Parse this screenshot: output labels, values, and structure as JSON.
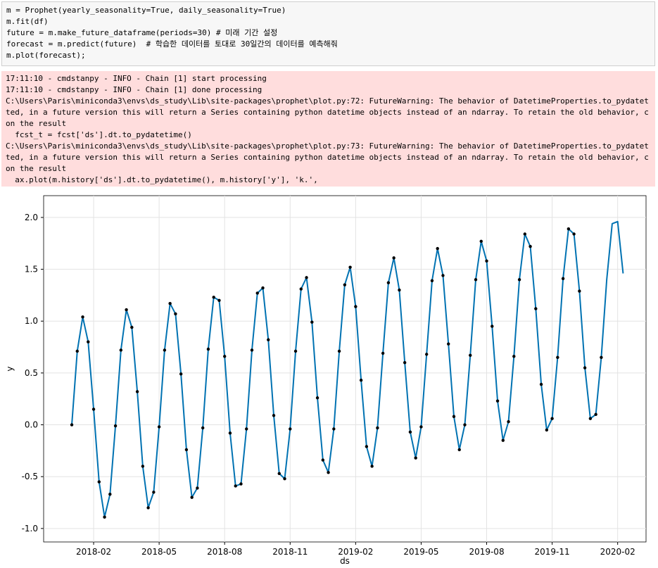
{
  "code": {
    "lines": [
      "m = Prophet(yearly_seasonality=True, daily_seasonality=True)",
      "m.fit(df)",
      "future = m.make_future_dataframe(periods=30) # 미래 기간 설정",
      "forecast = m.predict(future)  # 학습한 데이터를 토대로 30일간의 데이터를 예측해줘",
      "m.plot(forecast);"
    ]
  },
  "output": {
    "lines": [
      "17:11:10 - cmdstanpy - INFO - Chain [1] start processing",
      "17:11:10 - cmdstanpy - INFO - Chain [1] done processing",
      "C:\\Users\\Paris\\miniconda3\\envs\\ds_study\\Lib\\site-packages\\prophet\\plot.py:72: FutureWarning: The behavior of DatetimeProperties.to_pydatet",
      "ted, in a future version this will return a Series containing python datetime objects instead of an ndarray. To retain the old behavior, c",
      "on the result",
      "  fcst_t = fcst['ds'].dt.to_pydatetime()",
      "C:\\Users\\Paris\\miniconda3\\envs\\ds_study\\Lib\\site-packages\\prophet\\plot.py:73: FutureWarning: The behavior of DatetimeProperties.to_pydatet",
      "ted, in a future version this will return a Series containing python datetime objects instead of an ndarray. To retain the old behavior, c",
      "on the result",
      "  ax.plot(m.history['ds'].dt.to_pydatetime(), m.history['y'], 'k.',"
    ]
  },
  "chart_data": {
    "type": "line",
    "x_label": "ds",
    "y_label": "y",
    "grid": true,
    "xlim": [
      -1.29,
      26.3
    ],
    "ylim": [
      -1.13,
      2.21
    ],
    "xticks": [
      {
        "value": 1,
        "label": "2018-02"
      },
      {
        "value": 4,
        "label": "2018-05"
      },
      {
        "value": 7,
        "label": "2018-08"
      },
      {
        "value": 10,
        "label": "2018-11"
      },
      {
        "value": 13,
        "label": "2019-02"
      },
      {
        "value": 16,
        "label": "2019-05"
      },
      {
        "value": 19,
        "label": "2019-08"
      },
      {
        "value": 22,
        "label": "2019-11"
      },
      {
        "value": 25,
        "label": "2020-02"
      }
    ],
    "yticks": [
      {
        "value": -1,
        "label": "-1.0"
      },
      -0.5,
      {
        "value": 0,
        "label": "0.0"
      },
      0.5,
      {
        "value": 1,
        "label": "1.0"
      },
      1.5,
      {
        "value": 2,
        "label": "2.0"
      }
    ],
    "x": [
      0,
      0.25,
      0.5,
      0.75,
      1,
      1.25,
      1.5,
      1.75,
      2,
      2.25,
      2.5,
      2.75,
      3,
      3.25,
      3.5,
      3.75,
      4,
      4.25,
      4.5,
      4.75,
      5,
      5.25,
      5.5,
      5.75,
      6,
      6.25,
      6.5,
      6.75,
      7,
      7.25,
      7.5,
      7.75,
      8,
      8.25,
      8.5,
      8.75,
      9,
      9.25,
      9.5,
      9.75,
      10,
      10.25,
      10.5,
      10.75,
      11,
      11.25,
      11.5,
      11.75,
      12,
      12.25,
      12.5,
      12.75,
      13,
      13.25,
      13.5,
      13.75,
      14,
      14.25,
      14.5,
      14.75,
      15,
      15.25,
      15.5,
      15.75,
      16,
      16.25,
      16.5,
      16.75,
      17,
      17.25,
      17.5,
      17.75,
      18,
      18.25,
      18.5,
      18.75,
      19,
      19.25,
      19.5,
      19.75,
      20,
      20.25,
      20.5,
      20.75,
      21,
      21.25,
      21.5,
      21.75,
      22,
      22.25,
      22.5,
      22.75,
      23,
      23.25,
      23.5,
      23.75,
      24,
      24.25,
      24.5,
      24.75,
      25,
      25.25
    ],
    "series": [
      {
        "mode": "markers",
        "color": "#000000",
        "values": [
          0.0,
          0.71,
          1.04,
          0.8,
          0.15,
          -0.55,
          -0.89,
          -0.67,
          -0.01,
          0.72,
          1.11,
          0.94,
          0.32,
          -0.4,
          -0.8,
          -0.65,
          -0.02,
          0.72,
          1.17,
          1.07,
          0.49,
          -0.24,
          -0.7,
          -0.61,
          -0.03,
          0.73,
          1.23,
          1.2,
          0.66,
          -0.08,
          -0.59,
          -0.57,
          -0.04,
          0.72,
          1.27,
          1.32,
          0.82,
          0.09,
          -0.47,
          -0.52,
          -0.04,
          0.71,
          1.31,
          1.42,
          0.99,
          0.26,
          -0.34,
          -0.46,
          -0.04,
          0.71,
          1.35,
          1.52,
          1.14,
          0.43,
          -0.21,
          -0.4,
          -0.03,
          0.69,
          1.37,
          1.61,
          1.3,
          0.6,
          -0.07,
          -0.32,
          -0.02,
          0.68,
          1.39,
          1.7,
          1.44,
          0.78,
          0.08,
          -0.24,
          0.0,
          0.67,
          1.4,
          1.77,
          1.58,
          0.95,
          0.23,
          -0.15,
          0.03,
          0.66,
          1.4,
          1.84,
          1.72,
          1.12,
          0.39,
          -0.05,
          0.06,
          0.65,
          1.41,
          1.89,
          1.84,
          1.29,
          0.55,
          0.06,
          0.1,
          0.65,
          null,
          null,
          null,
          null
        ]
      },
      {
        "mode": "lines",
        "color": "#0072b2",
        "values": [
          0.0,
          0.71,
          1.04,
          0.8,
          0.15,
          -0.55,
          -0.89,
          -0.67,
          -0.01,
          0.72,
          1.11,
          0.94,
          0.32,
          -0.4,
          -0.8,
          -0.65,
          -0.02,
          0.72,
          1.17,
          1.07,
          0.49,
          -0.24,
          -0.7,
          -0.61,
          -0.03,
          0.73,
          1.23,
          1.2,
          0.66,
          -0.08,
          -0.59,
          -0.57,
          -0.04,
          0.72,
          1.27,
          1.32,
          0.82,
          0.09,
          -0.47,
          -0.52,
          -0.04,
          0.71,
          1.31,
          1.42,
          0.99,
          0.26,
          -0.34,
          -0.46,
          -0.04,
          0.71,
          1.35,
          1.52,
          1.14,
          0.43,
          -0.21,
          -0.4,
          -0.03,
          0.69,
          1.37,
          1.61,
          1.3,
          0.6,
          -0.07,
          -0.32,
          -0.02,
          0.68,
          1.39,
          1.7,
          1.44,
          0.78,
          0.08,
          -0.24,
          0.0,
          0.67,
          1.4,
          1.77,
          1.58,
          0.95,
          0.23,
          -0.15,
          0.03,
          0.66,
          1.4,
          1.84,
          1.72,
          1.12,
          0.39,
          -0.05,
          0.06,
          0.65,
          1.41,
          1.89,
          1.84,
          1.29,
          0.55,
          0.06,
          0.1,
          0.65,
          1.4,
          1.94,
          1.96,
          1.46
        ]
      }
    ]
  }
}
